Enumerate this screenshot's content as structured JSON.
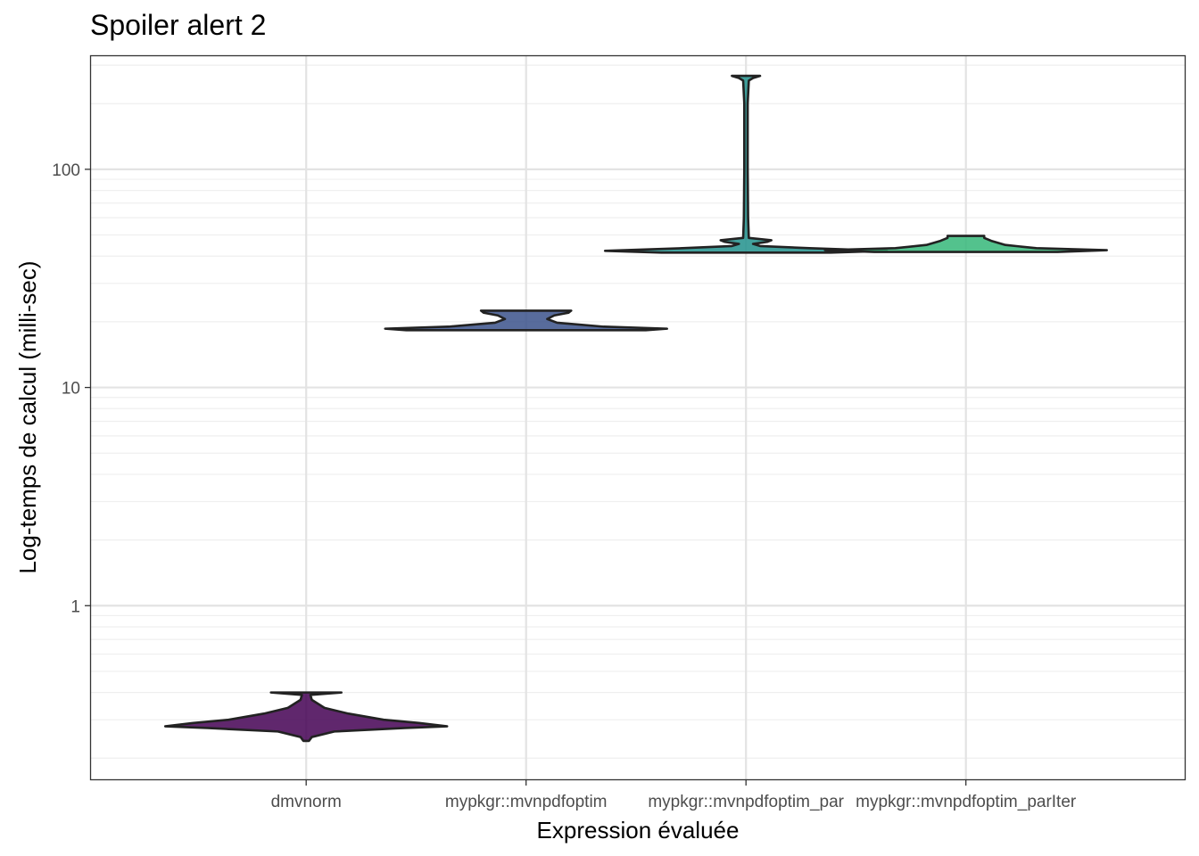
{
  "chart_data": {
    "type": "violin",
    "title": "Spoiler alert 2",
    "xlabel": "Expression évaluée",
    "ylabel": "Log-temps de calcul (milli-sec)",
    "y_scale": "log10",
    "ylim": [
      0.16,
      330
    ],
    "y_ticks": [
      1,
      10,
      100
    ],
    "y_tick_labels": [
      "1",
      "10",
      "100"
    ],
    "grid": true,
    "legend": "none",
    "categories": [
      "dmvnorm",
      "mypkgr::mvnpdfoptim",
      "mypkgr::mvnpdfoptim_par",
      "mypkgr::mvnpdfoptim_parIter"
    ],
    "series": [
      {
        "category": "dmvnorm",
        "color": "#440154",
        "min": 0.24,
        "max": 0.4,
        "profile": [
          [
            0.24,
            0.02
          ],
          [
            0.25,
            0.04
          ],
          [
            0.265,
            0.2
          ],
          [
            0.275,
            0.7
          ],
          [
            0.28,
            1.0
          ],
          [
            0.29,
            0.8
          ],
          [
            0.3,
            0.55
          ],
          [
            0.32,
            0.3
          ],
          [
            0.34,
            0.13
          ],
          [
            0.37,
            0.04
          ],
          [
            0.39,
            0.03
          ],
          [
            0.4,
            0.25
          ]
        ]
      },
      {
        "category": "mypkgr::mvnpdfoptim",
        "color": "#3B528B",
        "min": 18.3,
        "max": 22.5,
        "profile": [
          [
            18.3,
            0.85
          ],
          [
            18.6,
            1.0
          ],
          [
            19.0,
            0.55
          ],
          [
            19.8,
            0.22
          ],
          [
            20.6,
            0.15
          ],
          [
            21.4,
            0.2
          ],
          [
            22.0,
            0.3
          ],
          [
            22.5,
            0.32
          ]
        ]
      },
      {
        "category": "mypkgr::mvnpdfoptim_par",
        "color": "#21908C",
        "min": 41.5,
        "max": 268,
        "profile": [
          [
            41.5,
            0.6
          ],
          [
            42.3,
            1.0
          ],
          [
            43.5,
            0.45
          ],
          [
            44.5,
            0.1
          ],
          [
            45.5,
            0.05
          ],
          [
            46.5,
            0.15
          ],
          [
            47.3,
            0.18
          ],
          [
            48.5,
            0.02
          ],
          [
            60,
            0.015
          ],
          [
            100,
            0.012
          ],
          [
            200,
            0.012
          ],
          [
            255,
            0.02
          ],
          [
            262,
            0.05
          ],
          [
            268,
            0.1
          ]
        ]
      },
      {
        "category": "mypkgr::mvnpdfoptim_parIter",
        "color": "#35B779",
        "min": 41.8,
        "max": 49.5,
        "profile": [
          [
            41.8,
            0.65
          ],
          [
            42.6,
            1.0
          ],
          [
            43.5,
            0.5
          ],
          [
            45,
            0.28
          ],
          [
            47,
            0.18
          ],
          [
            48.5,
            0.13
          ],
          [
            49.5,
            0.13
          ]
        ]
      }
    ],
    "colors": {
      "panel_border": "#333333",
      "grid_major": "#e3e3e3",
      "grid_minor": "#efefef",
      "tick": "#333333",
      "violin_outline": "#222222"
    }
  }
}
